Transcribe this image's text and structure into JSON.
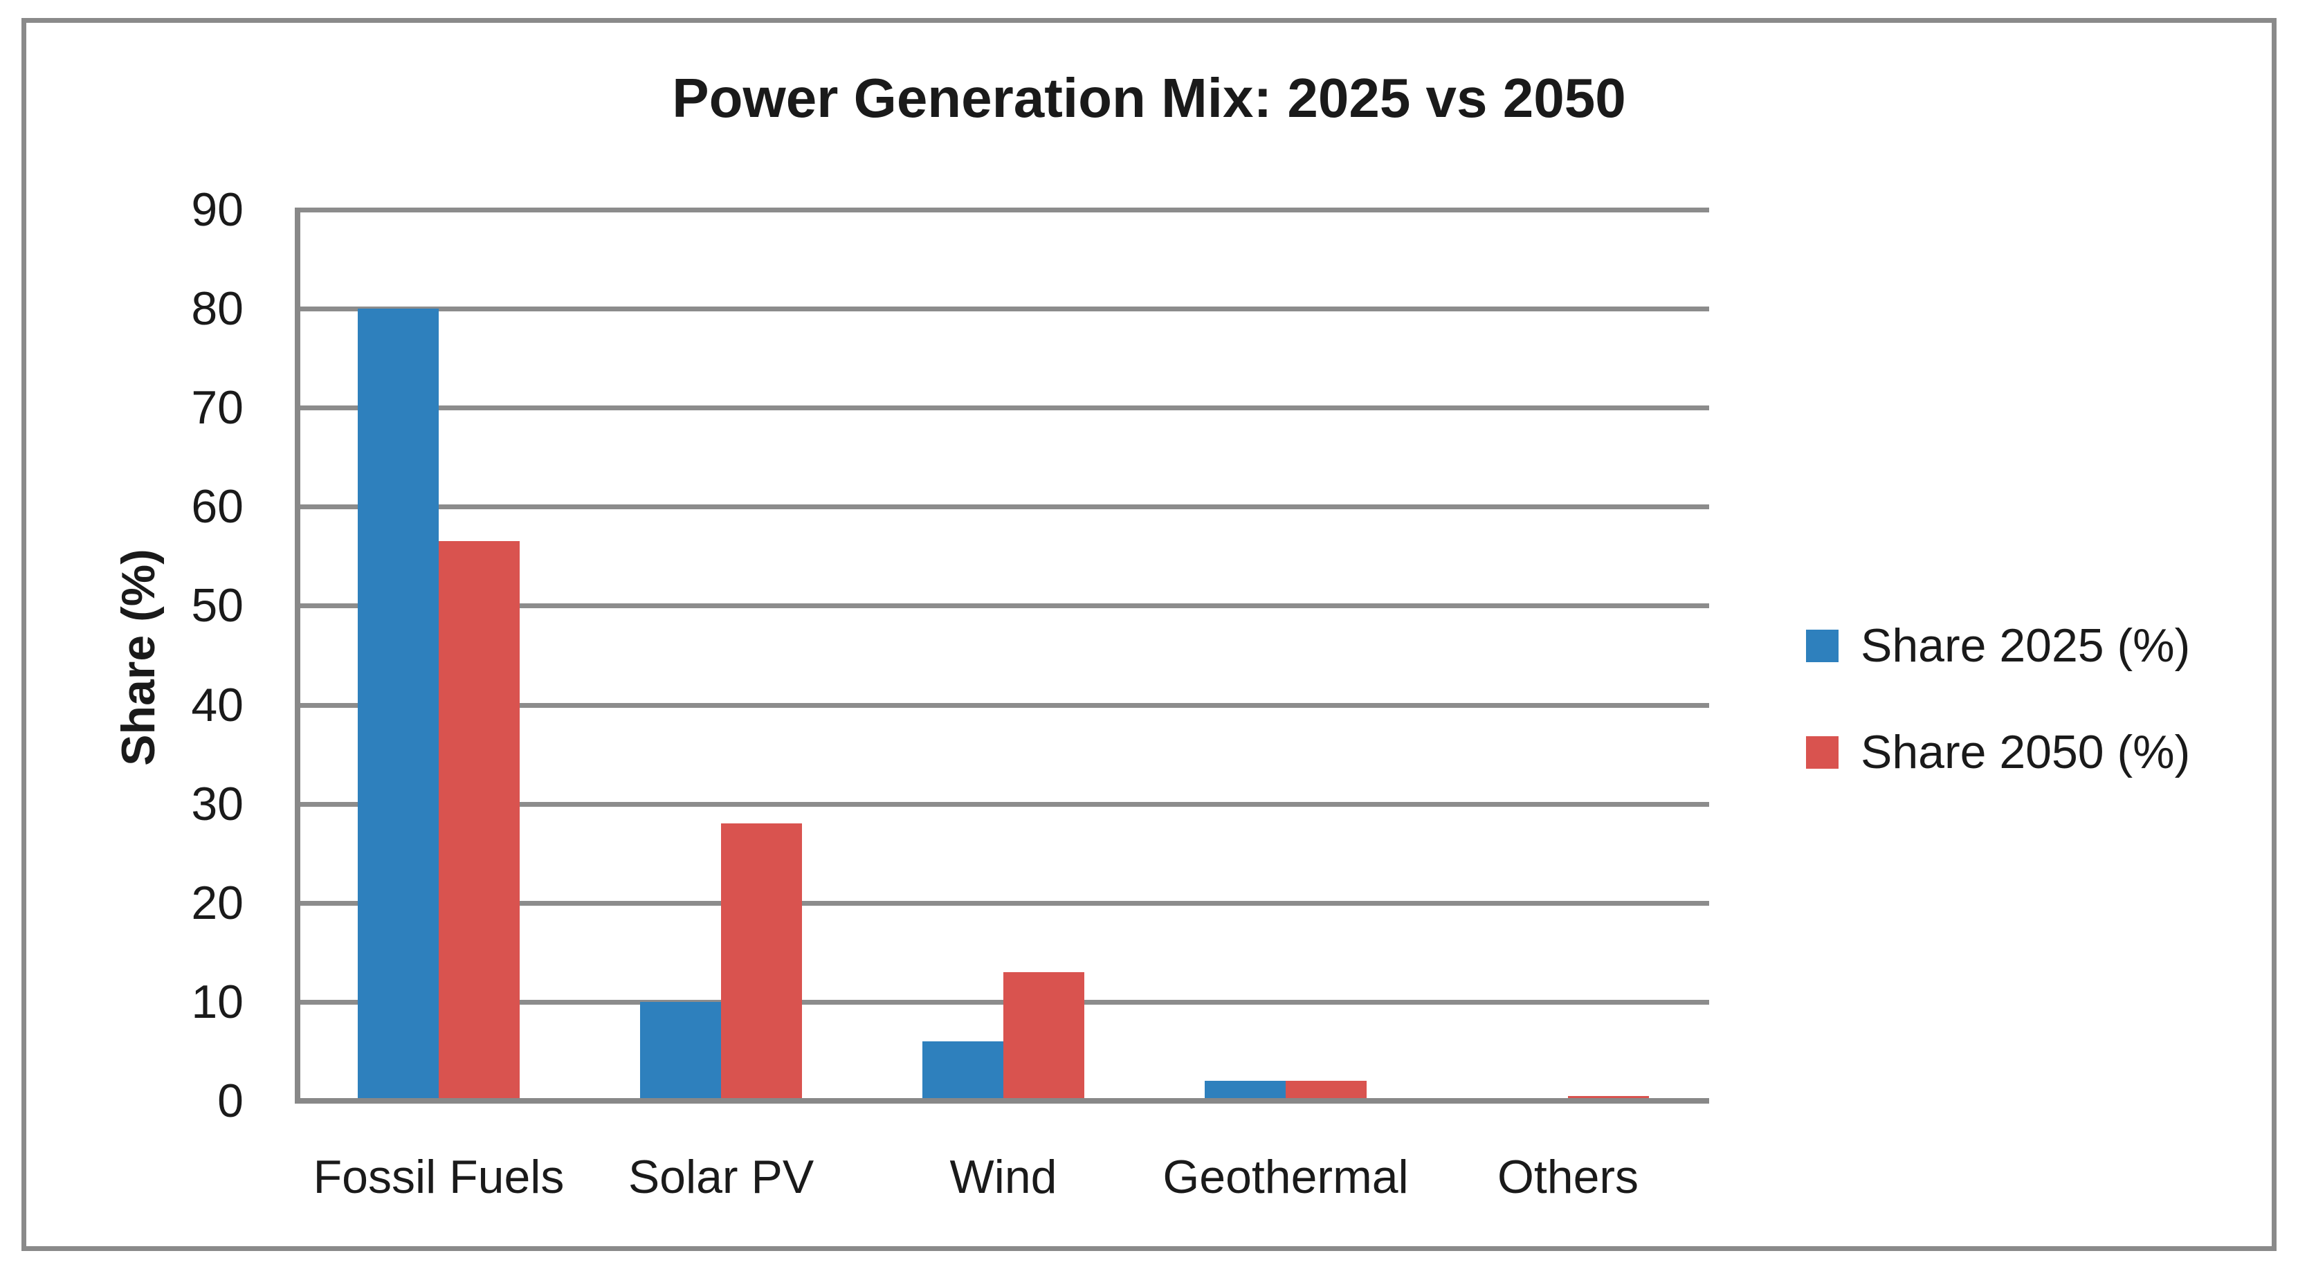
{
  "figure": {
    "background": "#ffffff",
    "frame_color": "#8A8A8A"
  },
  "chart_data": {
    "type": "bar",
    "title": "Power Generation Mix: 2025 vs 2050",
    "xlabel": "",
    "ylabel": "Share (%)",
    "categories": [
      "Fossil Fuels",
      "Solar PV",
      "Wind",
      "Geothermal",
      "Others"
    ],
    "series": [
      {
        "name": "Share 2025 (%)",
        "color": "#2E80BD",
        "values": [
          80,
          10,
          6,
          2,
          0
        ]
      },
      {
        "name": "Share 2050 (%)",
        "color": "#D9534F",
        "values": [
          56.5,
          28,
          13,
          2,
          0.5
        ]
      }
    ],
    "ylim": [
      0,
      90
    ],
    "yticks": [
      0,
      10,
      20,
      30,
      40,
      50,
      60,
      70,
      80,
      90
    ],
    "grid": true,
    "gridline_color": "#8C8C8C",
    "axis_color": "#888888",
    "legend_position": "right"
  }
}
